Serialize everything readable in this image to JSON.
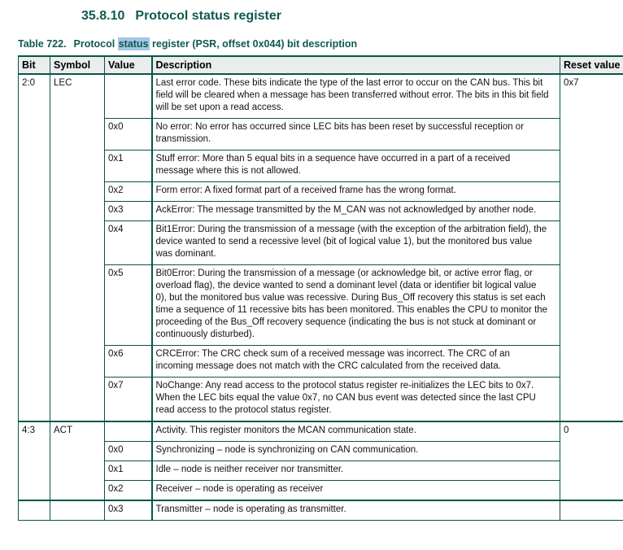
{
  "colors": {
    "accent": "#0e5a50",
    "table_border": "#0a544a",
    "header_background": "#e9eeec",
    "search_highlight": "#a5c6e4"
  },
  "section": {
    "number": "35.8.10",
    "title": "Protocol status register"
  },
  "caption": {
    "label": "Table 722.",
    "pre": "Protocol ",
    "highlight": "status",
    "post": " register (PSR, offset 0x044) bit description"
  },
  "table": {
    "headers": [
      "Bit",
      "Symbol",
      "Value",
      "Description",
      "Reset value"
    ],
    "groups": [
      {
        "bit": "2:0",
        "symbol": "LEC",
        "reset": "0x7",
        "rows": [
          {
            "value": "",
            "desc": "Last error code. These bits indicate the type of the last error to occur on the CAN bus. This bit field will be cleared when a message has been transferred without error. The bits in this bit field will be set upon a read access."
          },
          {
            "value": "0x0",
            "desc": "No error: No error has occurred since LEC bits has been reset by successful reception or transmission."
          },
          {
            "value": "0x1",
            "desc": "Stuff error: More than 5 equal bits in a sequence have occurred in a part of a received message where this is not allowed."
          },
          {
            "value": "0x2",
            "desc": "Form error: A fixed format part of a received frame has the wrong format."
          },
          {
            "value": "0x3",
            "desc": "AckError: The message transmitted by the M_CAN was not acknowledged by another node."
          },
          {
            "value": "0x4",
            "thick_top": true,
            "desc": "Bit1Error: During the transmission of a message (with the exception of the arbitration field), the device wanted to send a recessive level (bit of logical value 1), but the monitored bus value was dominant."
          },
          {
            "value": "0x5",
            "desc": "Bit0Error: During the transmission of a message (or acknowledge bit, or active error flag, or overload flag), the device wanted to send a dominant level (data or identifier bit logical value 0), but the monitored bus value was recessive. During Bus_Off recovery this status is set each time a sequence of 11 recessive bits has been monitored. This enables the CPU to monitor the proceeding of the Bus_Off recovery sequence (indicating the bus is not stuck at dominant or continuously disturbed)."
          },
          {
            "value": "0x6",
            "desc": "CRCError: The CRC check sum of a received message was incorrect. The CRC of an incoming message does not match with the CRC calculated from the received data."
          },
          {
            "value": "0x7",
            "desc": "NoChange: Any read access to the protocol status register re-initializes the LEC bits to 0x7. When the LEC bits equal the value 0x7, no CAN bus event was detected since the last CPU read access to the protocol status register."
          }
        ]
      },
      {
        "bit": "4:3",
        "symbol": "ACT",
        "reset": "0",
        "rows": [
          {
            "value": "",
            "desc": "Activity. This register monitors the MCAN communication state."
          },
          {
            "value": "0x0",
            "desc": "Synchronizing – node is synchronizing on CAN communication."
          },
          {
            "value": "0x1",
            "desc": "Idle – node is neither receiver nor transmitter."
          },
          {
            "value": "0x2",
            "desc": "Receiver – node is operating as receiver"
          }
        ]
      }
    ],
    "continuation_row": {
      "bit": "",
      "symbol": "",
      "value": "0x3",
      "desc": "Transmitter – node is operating as transmitter.",
      "reset": ""
    }
  }
}
